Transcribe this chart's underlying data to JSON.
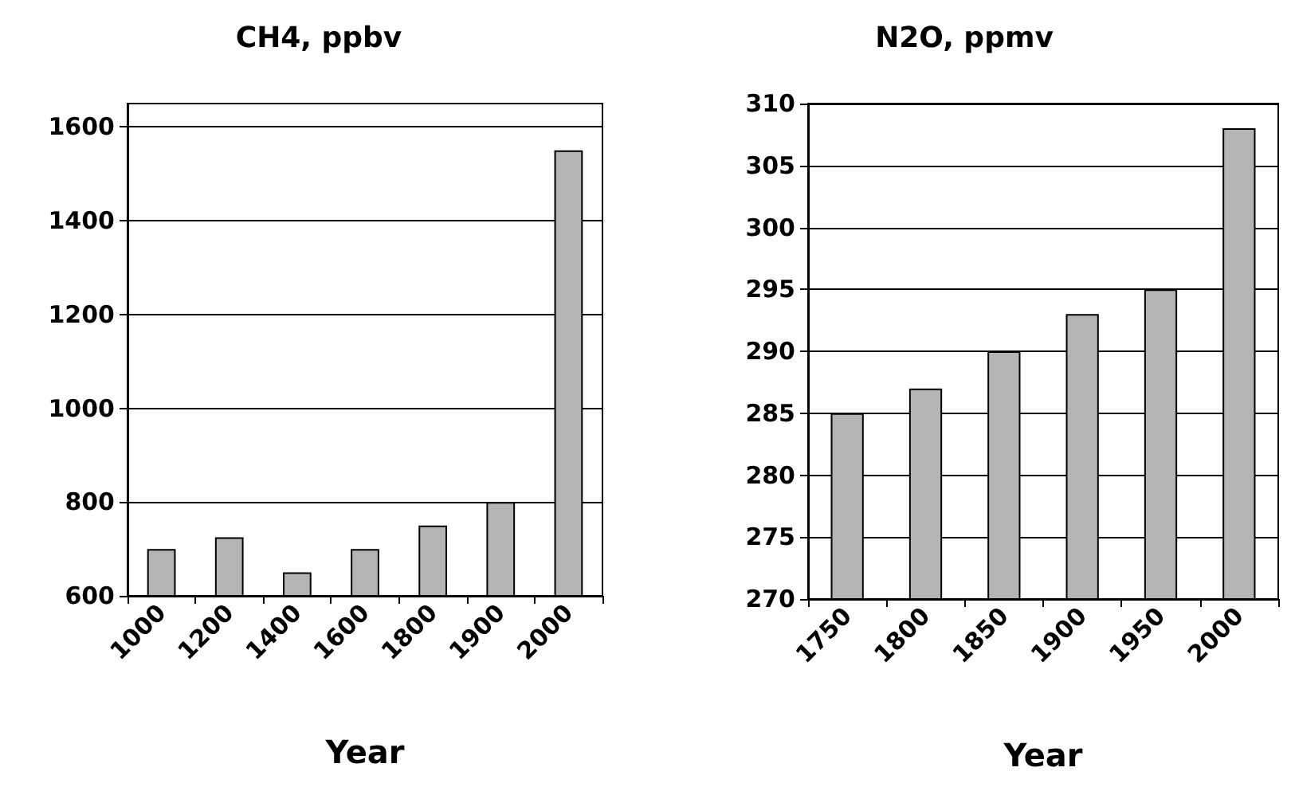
{
  "chart_data": [
    {
      "type": "bar",
      "title": "CH4, ppbv",
      "xlabel": "Year",
      "categories": [
        "1000",
        "1200",
        "1400",
        "1600",
        "1800",
        "1900",
        "2000"
      ],
      "values": [
        700,
        725,
        650,
        700,
        750,
        800,
        1550
      ],
      "color": "#b4b4b4",
      "ylim": [
        600,
        1650
      ],
      "yticks": [
        600,
        800,
        1000,
        1200,
        1400,
        1600
      ],
      "grid": "y"
    },
    {
      "type": "bar",
      "title": "N2O, ppmv",
      "xlabel": "Year",
      "categories": [
        "1750",
        "1800",
        "1850",
        "1900",
        "1950",
        "2000"
      ],
      "values": [
        285,
        287,
        290,
        293,
        295,
        308
      ],
      "color": "#b4b4b4",
      "ylim": [
        270,
        310
      ],
      "yticks": [
        270,
        275,
        280,
        285,
        290,
        295,
        300,
        305,
        310
      ],
      "grid": "y"
    }
  ]
}
